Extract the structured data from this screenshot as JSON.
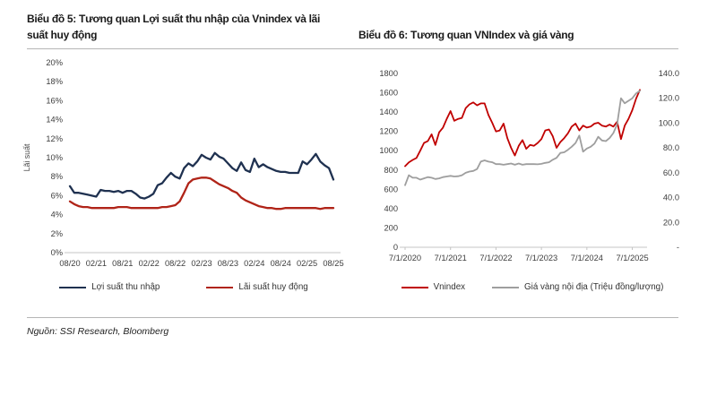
{
  "page": {
    "background": "#ffffff"
  },
  "source_note": "Nguồn: SSI Research, Bloomberg",
  "chart_data": [
    {
      "type": "line",
      "title": "Biểu đồ 5: Tương quan Lợi suất thu nhập của Vnindex và lãi suất huy động",
      "ylabel": "Lãi suất",
      "ylim": [
        0,
        20
      ],
      "grid": false,
      "legend_position": "bottom",
      "y_tick_labels": [
        "0%",
        "2%",
        "4%",
        "6%",
        "8%",
        "10%",
        "12%",
        "14%",
        "16%",
        "18%",
        "20%"
      ],
      "x_tick_labels": [
        "08/20",
        "02/21",
        "08/21",
        "02/22",
        "08/22",
        "02/23",
        "08/23",
        "02/24",
        "08/24",
        "02/25",
        "08/25"
      ],
      "x_tick_indices": [
        0,
        6,
        12,
        18,
        24,
        30,
        36,
        42,
        48,
        54,
        60
      ],
      "series": [
        {
          "name": "Lợi suất thu nhập",
          "color": "#1f3150",
          "values": [
            7.0,
            6.3,
            6.3,
            6.2,
            6.1,
            6.0,
            5.9,
            6.6,
            6.5,
            6.5,
            6.4,
            6.5,
            6.3,
            6.5,
            6.5,
            6.2,
            5.8,
            5.7,
            5.9,
            6.2,
            7.1,
            7.3,
            7.9,
            8.4,
            8.0,
            7.8,
            8.9,
            9.4,
            9.1,
            9.6,
            10.3,
            10.0,
            9.8,
            10.5,
            10.1,
            9.9,
            9.4,
            8.9,
            8.6,
            9.5,
            8.7,
            8.5,
            9.9,
            9.0,
            9.3,
            9.0,
            8.8,
            8.6,
            8.5,
            8.5,
            8.4,
            8.4,
            8.4,
            9.6,
            9.3,
            9.8,
            10.4,
            9.6,
            9.2,
            8.9,
            7.7
          ]
        },
        {
          "name": "Lãi suất huy động",
          "color": "#b02418",
          "values": [
            5.4,
            5.1,
            4.9,
            4.8,
            4.8,
            4.7,
            4.7,
            4.7,
            4.7,
            4.7,
            4.7,
            4.8,
            4.8,
            4.8,
            4.7,
            4.7,
            4.7,
            4.7,
            4.7,
            4.7,
            4.7,
            4.8,
            4.8,
            4.9,
            5.0,
            5.4,
            6.3,
            7.3,
            7.7,
            7.8,
            7.9,
            7.9,
            7.8,
            7.5,
            7.2,
            7.0,
            6.8,
            6.5,
            6.3,
            5.8,
            5.5,
            5.3,
            5.1,
            4.9,
            4.8,
            4.7,
            4.7,
            4.6,
            4.6,
            4.7,
            4.7,
            4.7,
            4.7,
            4.7,
            4.7,
            4.7,
            4.7,
            4.6,
            4.7,
            4.7,
            4.7
          ]
        }
      ]
    },
    {
      "type": "line",
      "title": "Biểu đồ 6: Tương quan VNIndex và giá vàng",
      "ylim": [
        0,
        1800
      ],
      "y2lim": [
        0,
        140
      ],
      "grid": false,
      "legend_position": "bottom",
      "y_tick_labels": [
        "0",
        "200",
        "400",
        "600",
        "800",
        "1000",
        "1200",
        "1400",
        "1600",
        "1800"
      ],
      "y2_tick_labels": [
        "-",
        "20.0",
        "40.0",
        "60.0",
        "80.0",
        "100.0",
        "120.0",
        "140.0"
      ],
      "x_tick_labels": [
        "7/1/2020",
        "7/1/2021",
        "7/1/2022",
        "7/1/2023",
        "7/1/2024",
        "7/1/2025"
      ],
      "x_tick_indices": [
        0,
        12,
        24,
        36,
        48,
        60
      ],
      "x_axis_ticks": true,
      "series": [
        {
          "name": "Vnindex",
          "axis": "left",
          "color": "#c00000",
          "values": [
            840,
            880,
            905,
            925,
            1000,
            1080,
            1100,
            1170,
            1060,
            1190,
            1240,
            1330,
            1410,
            1310,
            1330,
            1340,
            1440,
            1480,
            1500,
            1470,
            1490,
            1490,
            1370,
            1290,
            1200,
            1210,
            1280,
            1130,
            1030,
            950,
            1050,
            1110,
            1020,
            1060,
            1050,
            1080,
            1120,
            1210,
            1220,
            1150,
            1030,
            1090,
            1130,
            1180,
            1250,
            1280,
            1210,
            1260,
            1240,
            1250,
            1280,
            1290,
            1260,
            1250,
            1270,
            1250,
            1300,
            1120,
            1260,
            1330,
            1420,
            1540,
            1630
          ]
        },
        {
          "name": "Giá vàng nội địa (Triệu đồng/lượng)",
          "axis": "right",
          "color": "#9e9e9e",
          "values": [
            50,
            58,
            56,
            56,
            54.5,
            55.5,
            56.5,
            56,
            55,
            55.5,
            56.5,
            57,
            57.5,
            57,
            57.2,
            58,
            60,
            61,
            61.5,
            63,
            69,
            70,
            69,
            68.5,
            67,
            67,
            66.5,
            67,
            67.5,
            66.5,
            67.5,
            66.5,
            67,
            67,
            67,
            66.8,
            67.2,
            68,
            68.5,
            70.5,
            72,
            76,
            76.5,
            78.5,
            81,
            84,
            90,
            77,
            79.5,
            81,
            83.5,
            89,
            86,
            85.5,
            88,
            92,
            99,
            120,
            116,
            118,
            120,
            124,
            126
          ]
        }
      ]
    }
  ]
}
